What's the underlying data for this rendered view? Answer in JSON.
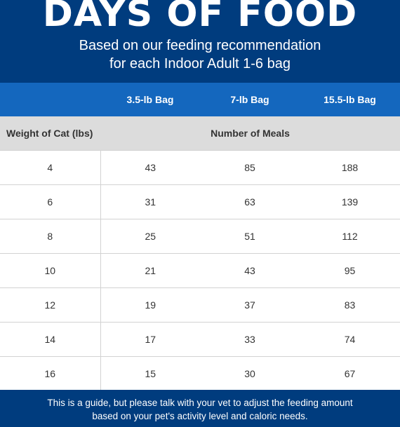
{
  "header": {
    "title": "DAYS OF FOOD",
    "subtitle_line1": "Based on our feeding recommendation",
    "subtitle_line2": "for each Indoor Adult 1-6 bag"
  },
  "table": {
    "bag_sizes": [
      "3.5-lb Bag",
      "7-lb Bag",
      "15.5-lb Bag"
    ],
    "weight_header": "Weight of Cat (lbs)",
    "meals_header": "Number of Meals",
    "rows": [
      {
        "weight": "4",
        "meals": [
          "43",
          "85",
          "188"
        ]
      },
      {
        "weight": "6",
        "meals": [
          "31",
          "63",
          "139"
        ]
      },
      {
        "weight": "8",
        "meals": [
          "25",
          "51",
          "112"
        ]
      },
      {
        "weight": "10",
        "meals": [
          "21",
          "43",
          "95"
        ]
      },
      {
        "weight": "12",
        "meals": [
          "19",
          "37",
          "83"
        ]
      },
      {
        "weight": "14",
        "meals": [
          "17",
          "33",
          "74"
        ]
      },
      {
        "weight": "16",
        "meals": [
          "15",
          "30",
          "67"
        ]
      }
    ]
  },
  "footer": {
    "line1": "This is a guide, but please talk with your vet to adjust the feeding amount",
    "line2": "based on your pet's activity level and caloric needs."
  },
  "colors": {
    "navy": "#003C7E",
    "header_blue": "#1467BE",
    "label_gray": "#DCDCDC"
  }
}
